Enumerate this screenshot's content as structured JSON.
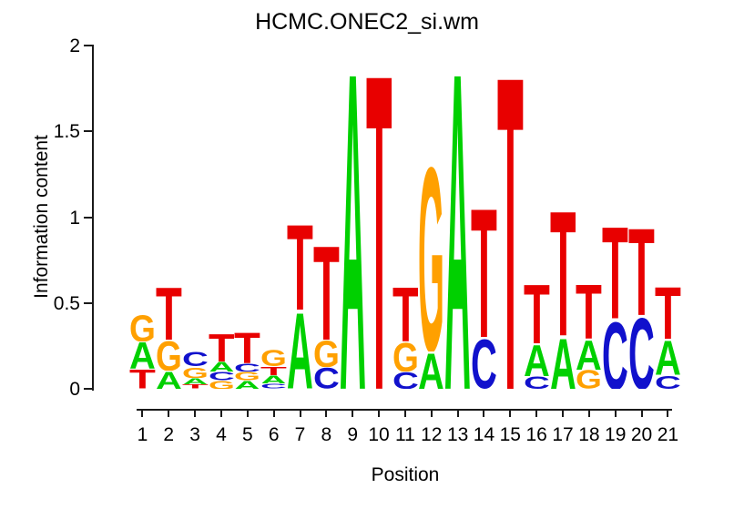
{
  "title": "HCMC.ONEC2_si.wm",
  "chart_data": {
    "type": "sequence-logo",
    "title": "HCMC.ONEC2_si.wm",
    "xlabel": "Position",
    "ylabel": "Information content",
    "ylim": [
      0,
      2
    ],
    "grid": false,
    "yticks": [
      {
        "value": 0,
        "label": "0"
      },
      {
        "value": 0.5,
        "label": "0.5"
      },
      {
        "value": 1,
        "label": "1"
      },
      {
        "value": 1.5,
        "label": "1.5"
      },
      {
        "value": 2,
        "label": "2"
      }
    ],
    "xticks": [
      "1",
      "2",
      "3",
      "4",
      "5",
      "6",
      "7",
      "8",
      "9",
      "10",
      "11",
      "12",
      "13",
      "14",
      "15",
      "16",
      "17",
      "18",
      "19",
      "20",
      "21"
    ],
    "colors": {
      "A": "#00D000",
      "C": "#1111CC",
      "G": "#FFA000",
      "T": "#E80000"
    },
    "positions": [
      {
        "pos": 1,
        "stack": [
          {
            "base": "G",
            "ic": 0.16
          },
          {
            "base": "A",
            "ic": 0.16
          },
          {
            "base": "T",
            "ic": 0.115
          }
        ]
      },
      {
        "pos": 2,
        "stack": [
          {
            "base": "T",
            "ic": 0.325
          },
          {
            "base": "G",
            "ic": 0.18
          },
          {
            "base": "A",
            "ic": 0.105
          }
        ]
      },
      {
        "pos": 3,
        "stack": [
          {
            "base": "C",
            "ic": 0.085
          },
          {
            "base": "G",
            "ic": 0.065
          },
          {
            "base": "A",
            "ic": 0.04
          },
          {
            "base": "T",
            "ic": 0.025
          }
        ]
      },
      {
        "pos": 4,
        "stack": [
          {
            "base": "T",
            "ic": 0.17
          },
          {
            "base": "A",
            "ic": 0.06
          },
          {
            "base": "C",
            "ic": 0.05
          },
          {
            "base": "G",
            "ic": 0.05
          }
        ]
      },
      {
        "pos": 5,
        "stack": [
          {
            "base": "T",
            "ic": 0.185
          },
          {
            "base": "C",
            "ic": 0.05
          },
          {
            "base": "G",
            "ic": 0.05
          },
          {
            "base": "A",
            "ic": 0.05
          }
        ]
      },
      {
        "pos": 6,
        "stack": [
          {
            "base": "G",
            "ic": 0.095
          },
          {
            "base": "T",
            "ic": 0.055
          },
          {
            "base": "A",
            "ic": 0.05
          },
          {
            "base": "C",
            "ic": 0.03
          }
        ]
      },
      {
        "pos": 7,
        "stack": [
          {
            "base": "T",
            "ic": 0.52
          },
          {
            "base": "A",
            "ic": 0.46
          }
        ]
      },
      {
        "pos": 8,
        "stack": [
          {
            "base": "T",
            "ic": 0.575
          },
          {
            "base": "G",
            "ic": 0.16
          },
          {
            "base": "C",
            "ic": 0.125
          }
        ]
      },
      {
        "pos": 9,
        "stack": [
          {
            "base": "A",
            "ic": 1.93
          }
        ]
      },
      {
        "pos": 10,
        "stack": [
          {
            "base": "T",
            "ic": 1.92
          }
        ]
      },
      {
        "pos": 11,
        "stack": [
          {
            "base": "T",
            "ic": 0.33
          },
          {
            "base": "G",
            "ic": 0.175
          },
          {
            "base": "C",
            "ic": 0.1
          }
        ]
      },
      {
        "pos": 12,
        "stack": [
          {
            "base": "G",
            "ic": 1.12
          },
          {
            "base": "A",
            "ic": 0.22
          }
        ]
      },
      {
        "pos": 13,
        "stack": [
          {
            "base": "A",
            "ic": 1.93
          }
        ]
      },
      {
        "pos": 14,
        "stack": [
          {
            "base": "T",
            "ic": 0.79
          },
          {
            "base": "C",
            "ic": 0.3
          }
        ]
      },
      {
        "pos": 15,
        "stack": [
          {
            "base": "T",
            "ic": 1.91
          }
        ]
      },
      {
        "pos": 16,
        "stack": [
          {
            "base": "T",
            "ic": 0.36
          },
          {
            "base": "A",
            "ic": 0.19
          },
          {
            "base": "C",
            "ic": 0.075
          }
        ]
      },
      {
        "pos": 17,
        "stack": [
          {
            "base": "T",
            "ic": 0.76
          },
          {
            "base": "A",
            "ic": 0.31
          }
        ]
      },
      {
        "pos": 18,
        "stack": [
          {
            "base": "T",
            "ic": 0.33
          },
          {
            "base": "A",
            "ic": 0.18
          },
          {
            "base": "G",
            "ic": 0.11
          }
        ]
      },
      {
        "pos": 19,
        "stack": [
          {
            "base": "T",
            "ic": 0.56
          },
          {
            "base": "C",
            "ic": 0.41
          }
        ]
      },
      {
        "pos": 20,
        "stack": [
          {
            "base": "T",
            "ic": 0.53
          },
          {
            "base": "C",
            "ic": 0.43
          }
        ]
      },
      {
        "pos": 21,
        "stack": [
          {
            "base": "T",
            "ic": 0.32
          },
          {
            "base": "A",
            "ic": 0.21
          },
          {
            "base": "C",
            "ic": 0.08
          }
        ]
      }
    ]
  }
}
